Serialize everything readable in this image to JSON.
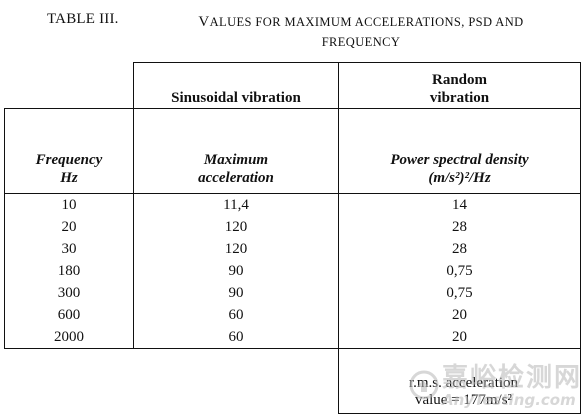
{
  "caption": {
    "table_id": "TABLE III.",
    "title_line1": "Values for maximum accelerations, PSD and",
    "title_line2": "frequency"
  },
  "table": {
    "group_headers": {
      "sinusoidal": "Sinusoidal vibration",
      "random_line1": "Random",
      "random_line2": "vibration"
    },
    "column_headers": {
      "frequency_line1": "Frequency",
      "frequency_line2": "Hz",
      "acceleration_line1": "Maximum",
      "acceleration_line2": "acceleration",
      "psd_line1": "Power spectral density",
      "psd_line2": "(m/s²)²/Hz"
    },
    "rows": [
      {
        "frequency": "10",
        "acceleration": "11,4",
        "psd": "14"
      },
      {
        "frequency": "20",
        "acceleration": "120",
        "psd": "28"
      },
      {
        "frequency": "30",
        "acceleration": "120",
        "psd": "28"
      },
      {
        "frequency": "180",
        "acceleration": "90",
        "psd": "0,75"
      },
      {
        "frequency": "300",
        "acceleration": "90",
        "psd": "0,75"
      },
      {
        "frequency": "600",
        "acceleration": "60",
        "psd": "20"
      },
      {
        "frequency": "2000",
        "acceleration": "60",
        "psd": "20"
      }
    ],
    "note": {
      "line1": "r.m.s. acceleration",
      "line2": "value = 177m/s²"
    }
  },
  "watermark": {
    "text_cn": "嘉峪检测网",
    "text_en": "AnyTesting.com",
    "logo_icon": "anytesting-logo-icon",
    "color": "#b8b8b8"
  }
}
